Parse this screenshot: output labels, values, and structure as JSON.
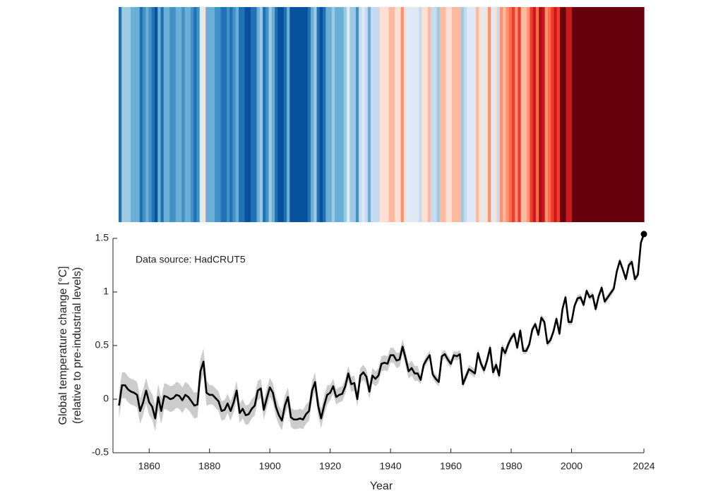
{
  "chart_data": {
    "type": "line",
    "annotation": "Data source: HadCRUT5",
    "ylabel": [
      "Global temperature change [°C]",
      "(relative to pre-industrial levels)"
    ],
    "xlabel": "Year",
    "x": [
      1850,
      1851,
      1852,
      1853,
      1854,
      1855,
      1856,
      1857,
      1858,
      1859,
      1860,
      1861,
      1862,
      1863,
      1864,
      1865,
      1866,
      1867,
      1868,
      1869,
      1870,
      1871,
      1872,
      1873,
      1874,
      1875,
      1876,
      1877,
      1878,
      1879,
      1880,
      1881,
      1882,
      1883,
      1884,
      1885,
      1886,
      1887,
      1888,
      1889,
      1890,
      1891,
      1892,
      1893,
      1894,
      1895,
      1896,
      1897,
      1898,
      1899,
      1900,
      1901,
      1902,
      1903,
      1904,
      1905,
      1906,
      1907,
      1908,
      1909,
      1910,
      1911,
      1912,
      1913,
      1914,
      1915,
      1916,
      1917,
      1918,
      1919,
      1920,
      1921,
      1922,
      1923,
      1924,
      1925,
      1926,
      1927,
      1928,
      1929,
      1930,
      1931,
      1932,
      1933,
      1934,
      1935,
      1936,
      1937,
      1938,
      1939,
      1940,
      1941,
      1942,
      1943,
      1944,
      1945,
      1946,
      1947,
      1948,
      1949,
      1950,
      1951,
      1952,
      1953,
      1954,
      1955,
      1956,
      1957,
      1958,
      1959,
      1960,
      1961,
      1962,
      1963,
      1964,
      1965,
      1966,
      1967,
      1968,
      1969,
      1970,
      1971,
      1972,
      1973,
      1974,
      1975,
      1976,
      1977,
      1978,
      1979,
      1980,
      1981,
      1982,
      1983,
      1984,
      1985,
      1986,
      1987,
      1988,
      1989,
      1990,
      1991,
      1992,
      1993,
      1994,
      1995,
      1996,
      1997,
      1998,
      1999,
      2000,
      2001,
      2002,
      2003,
      2004,
      2005,
      2006,
      2007,
      2008,
      2009,
      2010,
      2011,
      2012,
      2013,
      2014,
      2015,
      2016,
      2017,
      2018,
      2019,
      2020,
      2021,
      2022,
      2023,
      2024
    ],
    "series": [
      {
        "color": "#000000",
        "band_color": "#cccccc",
        "values": [
          -0.06,
          0.13,
          0.13,
          0.09,
          0.07,
          0.06,
          0.04,
          -0.11,
          -0.03,
          0.08,
          -0.03,
          -0.07,
          -0.18,
          0.02,
          -0.11,
          0.03,
          0.02,
          0.0,
          0.01,
          0.04,
          0.03,
          -0.01,
          0.04,
          0.02,
          -0.02,
          -0.06,
          -0.05,
          0.26,
          0.35,
          0.06,
          0.04,
          0.04,
          0.01,
          -0.02,
          -0.11,
          -0.1,
          -0.04,
          -0.11,
          -0.03,
          0.08,
          -0.13,
          -0.09,
          -0.15,
          -0.14,
          -0.09,
          -0.06,
          0.08,
          0.1,
          -0.1,
          0.01,
          0.11,
          0.06,
          -0.07,
          -0.15,
          -0.2,
          -0.06,
          0.02,
          -0.17,
          -0.19,
          -0.19,
          -0.18,
          -0.19,
          -0.14,
          -0.11,
          0.08,
          0.16,
          -0.06,
          -0.18,
          -0.06,
          0.04,
          0.06,
          0.12,
          0.02,
          0.04,
          0.05,
          0.12,
          0.24,
          0.14,
          0.15,
          0.0,
          0.22,
          0.25,
          0.21,
          0.07,
          0.22,
          0.19,
          0.22,
          0.33,
          0.34,
          0.33,
          0.41,
          0.41,
          0.36,
          0.37,
          0.49,
          0.38,
          0.26,
          0.29,
          0.24,
          0.24,
          0.18,
          0.32,
          0.37,
          0.41,
          0.23,
          0.19,
          0.16,
          0.4,
          0.42,
          0.37,
          0.33,
          0.41,
          0.4,
          0.42,
          0.14,
          0.21,
          0.28,
          0.26,
          0.24,
          0.43,
          0.33,
          0.27,
          0.36,
          0.48,
          0.25,
          0.32,
          0.22,
          0.48,
          0.43,
          0.51,
          0.57,
          0.61,
          0.48,
          0.64,
          0.45,
          0.45,
          0.51,
          0.65,
          0.7,
          0.6,
          0.76,
          0.72,
          0.52,
          0.55,
          0.63,
          0.75,
          0.61,
          0.84,
          0.95,
          0.72,
          0.72,
          0.87,
          0.94,
          0.95,
          0.88,
          1.01,
          0.95,
          0.97,
          0.84,
          0.96,
          1.04,
          0.91,
          0.95,
          0.99,
          1.03,
          1.19,
          1.29,
          1.21,
          1.12,
          1.25,
          1.28,
          1.12,
          1.16,
          1.46,
          1.54
        ],
        "errors": [
          0.12,
          0.12,
          0.12,
          0.12,
          0.12,
          0.12,
          0.12,
          0.12,
          0.12,
          0.12,
          0.12,
          0.12,
          0.12,
          0.12,
          0.12,
          0.12,
          0.12,
          0.12,
          0.12,
          0.12,
          0.12,
          0.12,
          0.12,
          0.12,
          0.12,
          0.12,
          0.12,
          0.12,
          0.12,
          0.12,
          0.09,
          0.09,
          0.09,
          0.09,
          0.09,
          0.09,
          0.09,
          0.09,
          0.09,
          0.09,
          0.09,
          0.09,
          0.09,
          0.09,
          0.09,
          0.09,
          0.09,
          0.09,
          0.09,
          0.09,
          0.09,
          0.09,
          0.09,
          0.09,
          0.09,
          0.09,
          0.09,
          0.09,
          0.09,
          0.09,
          0.09,
          0.09,
          0.09,
          0.09,
          0.09,
          0.09,
          0.09,
          0.09,
          0.09,
          0.09,
          0.07,
          0.07,
          0.07,
          0.07,
          0.07,
          0.07,
          0.07,
          0.07,
          0.07,
          0.07,
          0.07,
          0.07,
          0.07,
          0.07,
          0.07,
          0.07,
          0.07,
          0.07,
          0.07,
          0.07,
          0.07,
          0.07,
          0.07,
          0.07,
          0.07,
          0.07,
          0.07,
          0.07,
          0.07,
          0.07,
          0.04,
          0.04,
          0.04,
          0.04,
          0.04,
          0.04,
          0.04,
          0.04,
          0.04,
          0.04,
          0.04,
          0.04,
          0.04,
          0.04,
          0.04,
          0.04,
          0.04,
          0.04,
          0.04,
          0.04,
          0.04,
          0.04,
          0.04,
          0.04,
          0.04,
          0.04,
          0.04,
          0.04,
          0.04,
          0.04,
          0.03,
          0.03,
          0.03,
          0.03,
          0.03,
          0.03,
          0.03,
          0.03,
          0.03,
          0.03,
          0.03,
          0.03,
          0.03,
          0.03,
          0.03,
          0.03,
          0.03,
          0.03,
          0.03,
          0.03,
          0.03,
          0.03,
          0.03,
          0.03,
          0.03,
          0.03,
          0.03,
          0.03,
          0.03,
          0.03,
          0.03,
          0.03,
          0.03,
          0.03,
          0.03,
          0.03,
          0.03,
          0.03,
          0.03,
          0.03,
          0.03,
          0.03,
          0.03,
          0.03,
          0.03
        ]
      }
    ],
    "stripe_colors": [
      "#08306b",
      "#08519c",
      "#2171b5",
      "#4292c6",
      "#6baed6",
      "#9ecae1",
      "#c6dbef",
      "#deebf7",
      "#fee0d2",
      "#fcbba1",
      "#fc9272",
      "#fb6a4a",
      "#ef3b2c",
      "#cb181d",
      "#a50f15",
      "#67000d"
    ],
    "xlim": [
      1848,
      2024
    ],
    "xticks": [
      1860,
      1880,
      1900,
      1920,
      1940,
      1960,
      1980,
      2000,
      2024
    ],
    "ylim": [
      -0.5,
      1.5
    ],
    "yticks": [
      -0.5,
      0,
      0.5,
      1,
      1.5
    ],
    "end_marker": true
  }
}
